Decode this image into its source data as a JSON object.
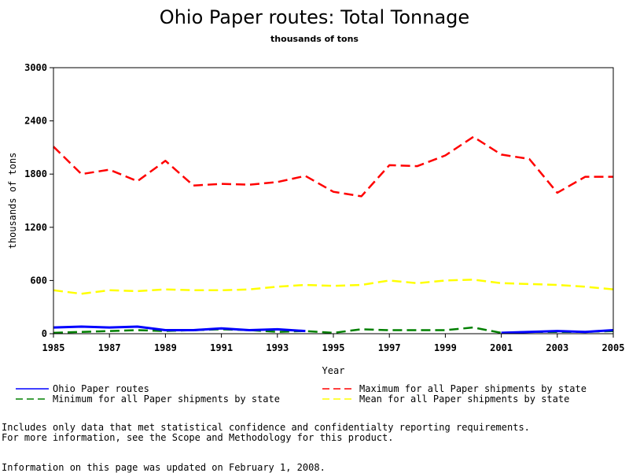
{
  "chart_data": {
    "type": "line",
    "title": "Ohio Paper routes: Total Tonnage",
    "subtitle": "thousands of tons",
    "xlabel": "Year",
    "ylabel": "thousands of tons",
    "xlim": [
      1985,
      2005
    ],
    "ylim": [
      0,
      3000
    ],
    "x_ticks": [
      "1985",
      "1987",
      "1989",
      "1991",
      "1993",
      "1995",
      "1997",
      "1999",
      "2001",
      "2003",
      "2005"
    ],
    "y_ticks": [
      "0",
      "600",
      "1200",
      "1800",
      "2400",
      "3000"
    ],
    "grid": false,
    "legend_position": "bottom",
    "x": [
      1985,
      1986,
      1987,
      1988,
      1989,
      1990,
      1991,
      1992,
      1993,
      1994,
      1995,
      1996,
      1997,
      1998,
      1999,
      2000,
      2001,
      2002,
      2003,
      2004,
      2005
    ],
    "series": [
      {
        "name": "Ohio Paper routes",
        "color": "#0000ff",
        "dash": "solid",
        "values": [
          70,
          80,
          70,
          80,
          40,
          40,
          60,
          40,
          50,
          30,
          null,
          null,
          null,
          null,
          null,
          null,
          10,
          20,
          30,
          20,
          40
        ]
      },
      {
        "name": "Maximum for all Paper shipments by state",
        "color": "#ff0000",
        "dash": "dashed",
        "values": [
          2110,
          1800,
          1850,
          1720,
          1950,
          1670,
          1690,
          1680,
          1710,
          1780,
          1600,
          1550,
          1900,
          1890,
          2010,
          2220,
          2020,
          1970,
          1590,
          1770,
          1770
        ]
      },
      {
        "name": "Minimum for all Paper shipments by state",
        "color": "#008000",
        "dash": "dashed",
        "values": [
          10,
          20,
          30,
          40,
          30,
          40,
          50,
          40,
          20,
          30,
          10,
          50,
          40,
          40,
          40,
          70,
          10,
          20,
          20,
          20,
          30
        ]
      },
      {
        "name": "Mean for all Paper shipments by state",
        "color": "#ffff00",
        "dash": "dashed",
        "values": [
          490,
          450,
          490,
          480,
          500,
          490,
          490,
          500,
          530,
          550,
          540,
          550,
          600,
          570,
          600,
          610,
          570,
          560,
          550,
          530,
          500
        ]
      }
    ]
  },
  "footnotes": {
    "line1": "Includes only data that met statistical confidence and confidentialty reporting requirements.",
    "line2": "For more information, see the Scope and Methodology for this product.",
    "updated": "Information on this page was updated on February 1, 2008."
  }
}
